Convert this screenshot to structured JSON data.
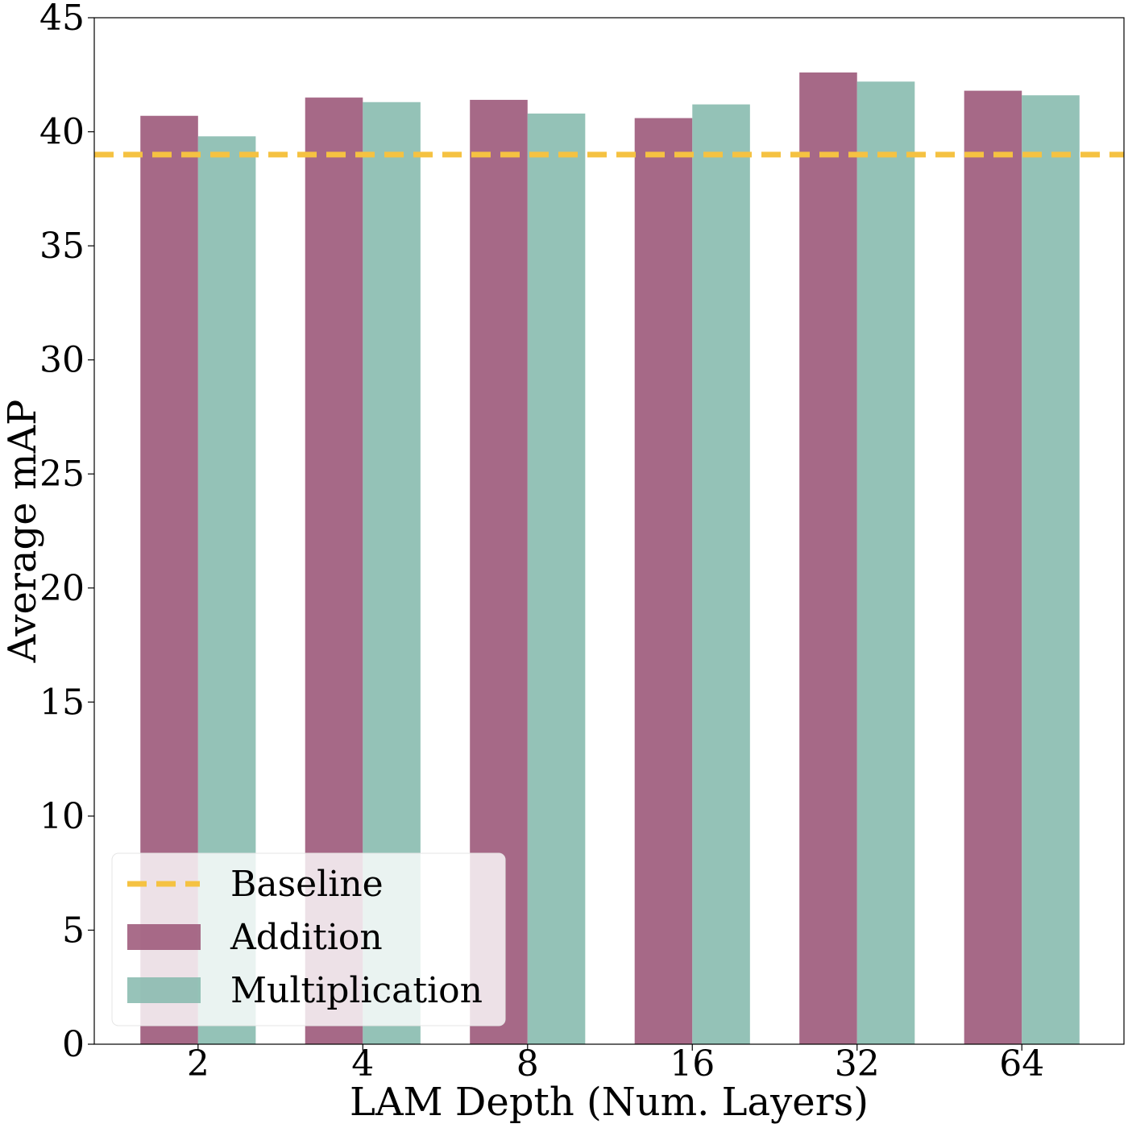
{
  "chart_data": {
    "type": "bar",
    "xlabel": "LAM Depth (Num. Layers)",
    "ylabel": "Average mAP",
    "categories": [
      "2",
      "4",
      "8",
      "16",
      "32",
      "64"
    ],
    "ylim": [
      0,
      45
    ],
    "yticks": [
      "0",
      "5",
      "10",
      "15",
      "20",
      "25",
      "30",
      "35",
      "40",
      "45"
    ],
    "series": [
      {
        "name": "Addition",
        "color": "#9a5476",
        "values": [
          40.7,
          41.5,
          41.4,
          40.6,
          42.6,
          41.8
        ]
      },
      {
        "name": "Multiplication",
        "color": "#85b9ad",
        "values": [
          39.8,
          41.3,
          40.8,
          41.2,
          42.2,
          41.6
        ]
      }
    ],
    "reference_lines": [
      {
        "name": "Baseline",
        "value": 39.0,
        "color": "#f5c242",
        "style": "dashed"
      }
    ],
    "legend": {
      "position": "lower-left",
      "entries": [
        "Baseline",
        "Addition",
        "Multiplication"
      ]
    },
    "grid": false
  }
}
